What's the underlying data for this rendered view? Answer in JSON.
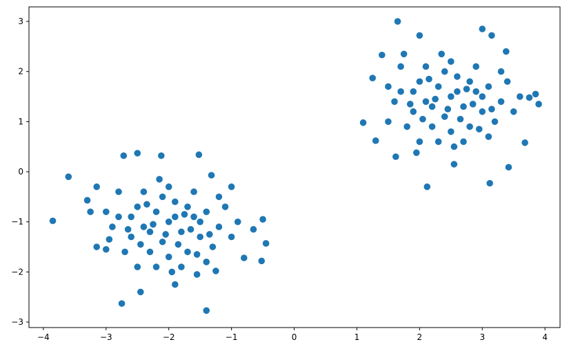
{
  "chart_data": {
    "type": "scatter",
    "color": "#1f77b4",
    "x": [
      -3.85,
      -3.6,
      -2.75,
      -2.45,
      -1.4,
      -0.45,
      -0.52,
      -0.5,
      -0.8,
      -2.5,
      -1.52,
      -2.12,
      -2.72,
      -3.3,
      -3.15,
      -3.15,
      -1.0,
      -1.32,
      -1.9,
      -1.55,
      -1.25,
      -3.0,
      -3.25,
      -2.95,
      -0.65,
      -2.0,
      -2.2,
      -1.8,
      -2.4,
      -1.6,
      -2.1,
      -1.9,
      -2.5,
      -1.5,
      -2.3,
      -1.7,
      -2.6,
      -1.4,
      -2.0,
      -2.8,
      -1.2,
      -2.2,
      -1.6,
      -2.7,
      -1.3,
      -2.9,
      -1.1,
      -2.4,
      -1.8,
      -2.0,
      -1.9,
      -2.3,
      -1.7,
      -2.1,
      -1.5,
      -2.6,
      -1.4,
      -2.5,
      -1.0,
      -2.8,
      -2.05,
      -1.85,
      -2.35,
      -1.65,
      -2.15,
      -1.95,
      -1.2,
      -3.0,
      -0.9,
      -2.45,
      -1.55,
      -2.25,
      -1.75,
      -2.65,
      -1.35,
      1.65,
      1.1,
      1.3,
      1.25,
      1.4,
      1.62,
      2.12,
      3.12,
      3.42,
      3.68,
      3.9,
      3.85,
      3.0,
      3.15,
      2.0,
      3.38,
      2.55,
      1.95,
      3.75,
      1.5,
      1.75,
      2.5,
      2.3,
      2.7,
      2.1,
      2.9,
      2.4,
      2.6,
      2.0,
      3.0,
      2.2,
      2.8,
      1.9,
      3.1,
      2.5,
      1.7,
      3.3,
      2.3,
      2.9,
      1.8,
      3.2,
      1.6,
      3.4,
      2.1,
      2.7,
      2.5,
      2.6,
      2.2,
      2.8,
      2.4,
      3.0,
      1.9,
      3.1,
      2.0,
      3.5,
      1.7,
      2.45,
      2.65,
      2.15,
      2.85,
      2.35,
      2.55,
      3.3,
      1.5,
      3.6,
      2.05,
      2.95,
      2.25,
      2.75,
      1.85,
      3.15
    ],
    "values": [
      -0.98,
      -0.1,
      -2.63,
      -2.4,
      -2.77,
      -1.43,
      -1.78,
      -0.95,
      -1.72,
      0.37,
      0.34,
      0.32,
      0.32,
      -0.57,
      -0.3,
      -1.5,
      -0.3,
      -0.07,
      -2.25,
      -2.05,
      -1.98,
      -1.55,
      -0.8,
      -1.35,
      -1.15,
      -1.0,
      -0.8,
      -1.2,
      -1.1,
      -0.9,
      -1.4,
      -0.6,
      -0.7,
      -1.3,
      -1.6,
      -1.6,
      -1.3,
      -0.8,
      -0.3,
      -0.9,
      -1.1,
      -1.9,
      -0.4,
      -1.6,
      -1.5,
      -1.1,
      -0.7,
      -0.4,
      -1.9,
      -1.7,
      -0.9,
      -1.2,
      -0.7,
      -0.5,
      -1.0,
      -0.9,
      -1.8,
      -1.9,
      -1.3,
      -0.4,
      -1.25,
      -1.45,
      -0.65,
      -1.15,
      -0.15,
      -2.0,
      -0.5,
      -0.8,
      -1.0,
      -1.45,
      -1.65,
      -1.05,
      -0.85,
      -1.15,
      -1.25,
      3.0,
      0.98,
      0.62,
      1.87,
      2.33,
      0.3,
      -0.3,
      -0.23,
      0.09,
      0.58,
      1.35,
      1.55,
      2.85,
      2.72,
      2.72,
      2.4,
      0.15,
      0.38,
      1.48,
      1.0,
      2.35,
      1.5,
      1.7,
      1.3,
      1.4,
      1.6,
      1.1,
      1.9,
      1.8,
      1.2,
      0.9,
      0.9,
      1.2,
      1.7,
      2.2,
      1.6,
      1.4,
      0.6,
      2.1,
      0.9,
      1.0,
      1.4,
      1.8,
      2.1,
      0.6,
      0.8,
      1.6,
      1.3,
      1.8,
      2.0,
      1.5,
      1.6,
      0.7,
      0.6,
      1.2,
      2.1,
      1.25,
      1.05,
      1.85,
      1.35,
      2.35,
      0.5,
      2.0,
      1.7,
      1.5,
      1.05,
      0.85,
      1.45,
      1.65,
      1.35,
      1.25
    ],
    "xlim": [
      -4.23,
      4.24
    ],
    "ylim": [
      -3.11,
      3.29
    ],
    "xticks": [
      {
        "value": -4,
        "label": "−4"
      },
      {
        "value": -3,
        "label": "−3"
      },
      {
        "value": -2,
        "label": "−2"
      },
      {
        "value": -1,
        "label": "−1"
      },
      0,
      1,
      2,
      3,
      4
    ],
    "yticks": [
      {
        "value": -3,
        "label": "−3"
      },
      {
        "value": -2,
        "label": "−2"
      },
      {
        "value": -1,
        "label": "−1"
      },
      0,
      1,
      2,
      3
    ]
  }
}
